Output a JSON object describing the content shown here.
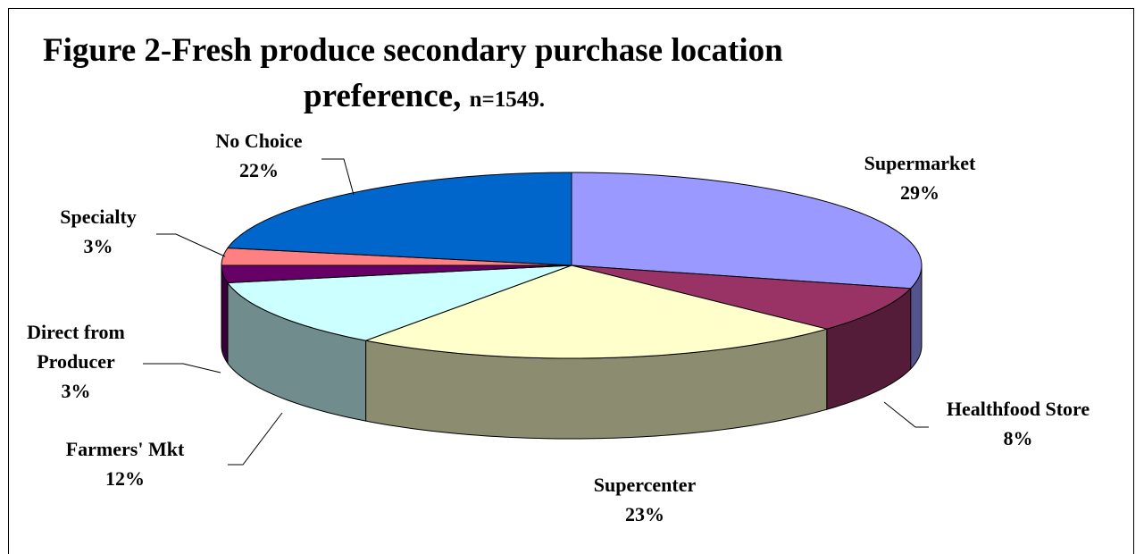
{
  "chart_data": {
    "type": "pie3d",
    "title": [
      "Figure 2-Fresh produce secondary purchase location",
      "preference,"
    ],
    "subtitle": "n=1549.",
    "categories": [
      "Supermarket",
      "Healthfood Store",
      "Supercenter",
      "Farmers' Mkt",
      "Direct from Producer",
      "Specialty",
      "No Choice"
    ],
    "values": [
      29,
      8,
      23,
      12,
      3,
      3,
      22
    ],
    "value_labels": [
      "29%",
      "8%",
      "23%",
      "12%",
      "3%",
      "3%",
      "22%"
    ],
    "colors": [
      "#9999ff",
      "#993366",
      "#ffffcc",
      "#ccffff",
      "#660066",
      "#ff8080",
      "#0066cc"
    ]
  }
}
